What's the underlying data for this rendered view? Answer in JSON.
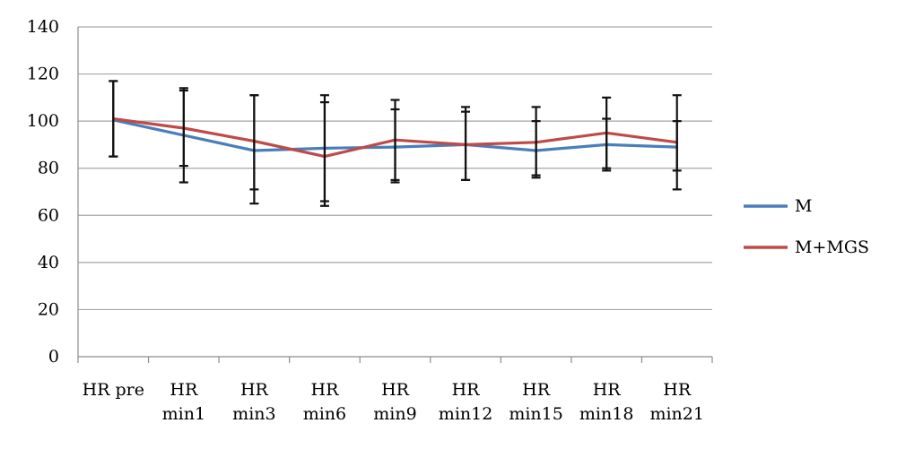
{
  "chart_data": {
    "type": "line",
    "categories": [
      [
        "HR pre"
      ],
      [
        "HR",
        "min1"
      ],
      [
        "HR",
        "min3"
      ],
      [
        "HR",
        "min6"
      ],
      [
        "HR",
        "min9"
      ],
      [
        "HR",
        "min12"
      ],
      [
        "HR",
        "min15"
      ],
      [
        "HR",
        "min18"
      ],
      [
        "HR",
        "min21"
      ]
    ],
    "ylim": [
      0,
      140
    ],
    "yticks": [
      0,
      20,
      40,
      60,
      80,
      100,
      120,
      140
    ],
    "grid": true,
    "legend_position": "right",
    "series": [
      {
        "name": "M",
        "color": "#4a7ebb",
        "values": [
          100.5,
          94,
          87.5,
          88.5,
          89,
          90,
          87.5,
          90,
          89
        ],
        "error_low": [
          85,
          81,
          71,
          66,
          74,
          75,
          76,
          80,
          79
        ],
        "error_high": [
          117,
          113,
          111,
          111,
          105,
          104,
          100,
          101,
          100
        ]
      },
      {
        "name": "M+MGS",
        "color": "#be4b48",
        "values": [
          101,
          97,
          91.5,
          85,
          92,
          90,
          91,
          95,
          91
        ],
        "error_low": [
          85,
          74,
          65,
          64,
          75,
          75,
          77,
          79,
          71
        ],
        "error_high": [
          117,
          114,
          111,
          108,
          109,
          106,
          106,
          110,
          111
        ]
      }
    ]
  }
}
